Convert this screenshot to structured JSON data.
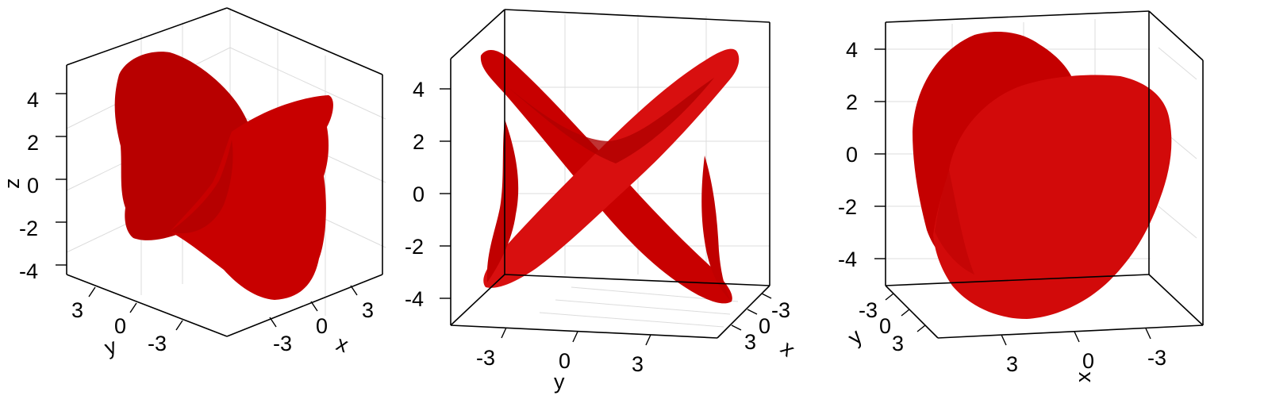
{
  "colors": {
    "surface": "#c80000",
    "surface_dark": "#a80000",
    "surface_light": "#dd1010"
  },
  "chart_data": [
    {
      "type": "3d-surface",
      "view": "oblique",
      "zlabel": "z",
      "ylabel": "y",
      "xlabel": "x",
      "zticks": [
        "4",
        "2",
        "0",
        "-2",
        "-4"
      ],
      "yticks": [
        "3",
        "0",
        "-3"
      ],
      "xticks": [
        "-3",
        "0",
        "3"
      ],
      "zlim": [
        -5,
        5
      ]
    },
    {
      "type": "3d-surface",
      "view": "front-y",
      "ylabel": "y",
      "xlabel": "x",
      "zticks": [
        "4",
        "2",
        "0",
        "-2",
        "-4"
      ],
      "yticks": [
        "-3",
        "0",
        "3"
      ],
      "xticks": [
        "-3",
        "0",
        "3"
      ],
      "zlim": [
        -5,
        5
      ]
    },
    {
      "type": "3d-surface",
      "view": "front-x",
      "ylabel": "y",
      "xlabel": "x",
      "zticks": [
        "4",
        "2",
        "0",
        "-2",
        "-4"
      ],
      "yticks": [
        "-3",
        "0",
        "3"
      ],
      "xticks": [
        "3",
        "0",
        "-3"
      ],
      "zlim": [
        -5,
        5
      ]
    }
  ]
}
